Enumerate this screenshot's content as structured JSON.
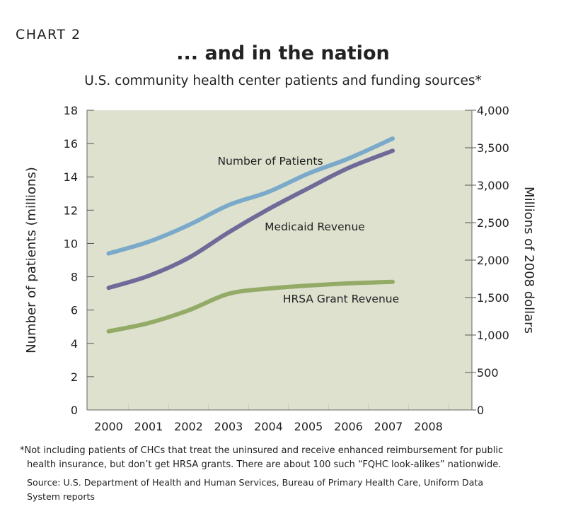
{
  "header": {
    "kicker": "CHART 2",
    "title": "... and in the nation",
    "subtitle": "U.S. community health center patients and funding sources*"
  },
  "notes": {
    "footnote_line1": "*Not including patients of CHCs that treat the uninsured and receive enhanced reimbursement for public",
    "footnote_line2": "health insurance, but don’t get HRSA grants. There are about 100 such “FQHC look-alikes” nationwide.",
    "source_line1": "Source: U.S. Department of Health and Human Services, Bureau of Primary Health Care, Uniform Data",
    "source_line2": "System reports"
  },
  "colors": {
    "plot_bg": "#dde1ce",
    "patients": "#7ba9c9",
    "medicaid": "#6f6a98",
    "hrsa": "#93ab66",
    "grid": "#c5c9b5"
  },
  "chart_data": {
    "type": "line",
    "x_categories": [
      "2000",
      "2001",
      "2002",
      "2003",
      "2004",
      "2005",
      "2006",
      "2007",
      "2008"
    ],
    "xlabel": "",
    "y_left": {
      "label": "Number of patients (millions)",
      "range": [
        0,
        18
      ],
      "ticks": [
        "0",
        "2",
        "4",
        "6",
        "8",
        "10",
        "12",
        "14",
        "16",
        "18"
      ]
    },
    "y_right": {
      "label": "Millions of 2008 dollars",
      "range": [
        0,
        4000
      ],
      "ticks": [
        "0",
        "500",
        "1,000",
        "1,500",
        "2,000",
        "2,500",
        "3,000",
        "3,500",
        "4,000"
      ]
    },
    "grid": false,
    "series": [
      {
        "name": "Number of Patients",
        "axis": "left",
        "x": [
          2000,
          2001,
          2002,
          2003,
          2004,
          2005,
          2006,
          2007
        ],
        "values": [
          9.4,
          10.1,
          11.1,
          12.3,
          13.1,
          14.2,
          15.1,
          16.3
        ]
      },
      {
        "name": "Medicaid Revenue",
        "axis": "right",
        "x": [
          2000,
          2001,
          2002,
          2003,
          2004,
          2005,
          2006,
          2007
        ],
        "values": [
          1630,
          1790,
          2030,
          2370,
          2680,
          2960,
          3230,
          3460
        ]
      },
      {
        "name": "HRSA Grant Revenue",
        "axis": "right",
        "x": [
          2000,
          2001,
          2002,
          2003,
          2004,
          2005,
          2006,
          2007
        ],
        "values": [
          1050,
          1160,
          1330,
          1550,
          1620,
          1660,
          1690,
          1710
        ]
      }
    ]
  }
}
